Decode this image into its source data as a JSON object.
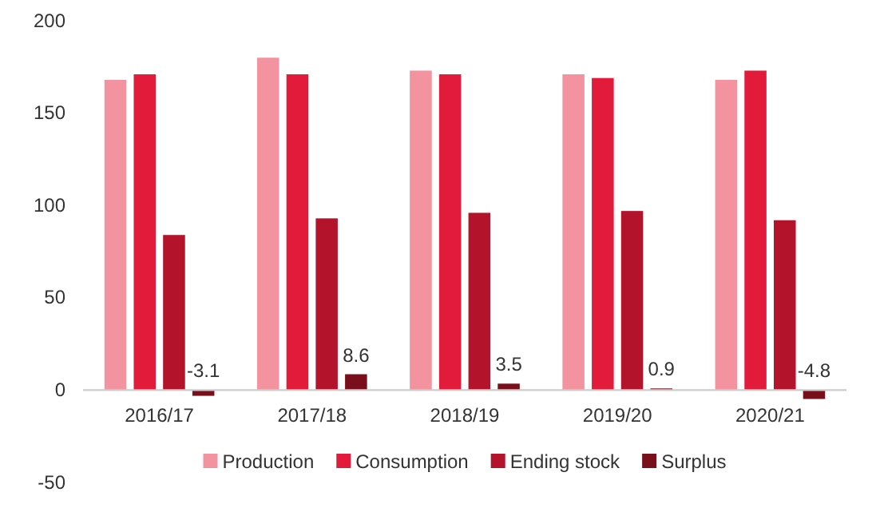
{
  "chart_data": {
    "type": "bar",
    "categories": [
      "2016/17",
      "2017/18",
      "2018/19",
      "2019/20",
      "2020/21"
    ],
    "series": [
      {
        "name": "Production",
        "color": "#f2939f",
        "values": [
          168,
          180,
          173,
          171,
          168
        ]
      },
      {
        "name": "Consumption",
        "color": "#e31b3a",
        "values": [
          171,
          171,
          171,
          169,
          173
        ]
      },
      {
        "name": "Ending stock",
        "color": "#b3142b",
        "values": [
          84,
          93,
          96,
          97,
          92
        ]
      },
      {
        "name": "Surplus",
        "color": "#7a0f1c",
        "values": [
          -3.1,
          8.6,
          3.5,
          0.9,
          -4.8
        ],
        "value_labels": [
          "-3.1",
          "8.6",
          "3.5",
          "0.9",
          "-4.8"
        ]
      }
    ],
    "ylim": [
      -50,
      200
    ],
    "yticks": [
      -50,
      0,
      50,
      100,
      150,
      200
    ],
    "grid": false,
    "legend": "bottom"
  }
}
